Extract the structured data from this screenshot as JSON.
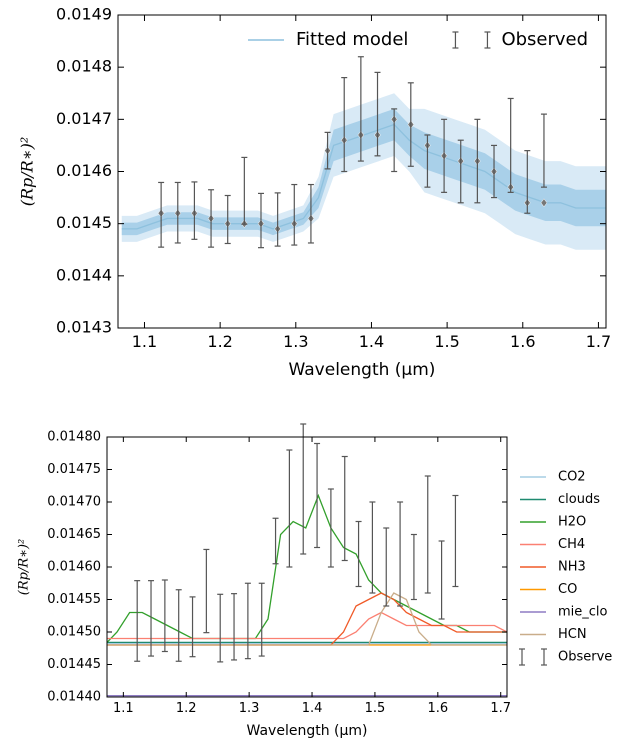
{
  "chart_data": [
    {
      "type": "line",
      "xlabel": "Wavelength (μm)",
      "ylabel": "(Rp/R∗)²",
      "xlim": [
        1.065,
        1.71
      ],
      "xticks": [
        1.1,
        1.2,
        1.3,
        1.4,
        1.5,
        1.6,
        1.7
      ],
      "ylim": [
        0.0143,
        0.0149
      ],
      "yticks": [
        0.0143,
        0.0144,
        0.0145,
        0.0146,
        0.0147,
        0.0148,
        0.0149
      ],
      "legend": "upper right",
      "series": [
        {
          "name": "Fitted model",
          "color": "#8ec1de",
          "band_colors": [
            "#a9d0e9",
            "#d9eaf6"
          ],
          "x": [
            1.07,
            1.09,
            1.11,
            1.13,
            1.15,
            1.17,
            1.19,
            1.21,
            1.23,
            1.25,
            1.27,
            1.29,
            1.31,
            1.33,
            1.35,
            1.37,
            1.39,
            1.41,
            1.43,
            1.45,
            1.47,
            1.49,
            1.51,
            1.53,
            1.55,
            1.57,
            1.59,
            1.61,
            1.63,
            1.65,
            1.67,
            1.69,
            1.71
          ],
          "values": [
            0.01449,
            0.01449,
            0.0145,
            0.01451,
            0.01451,
            0.01451,
            0.0145,
            0.0145,
            0.0145,
            0.0145,
            0.01449,
            0.0145,
            0.01451,
            0.01455,
            0.01465,
            0.01466,
            0.01467,
            0.01468,
            0.01469,
            0.01466,
            0.01464,
            0.01463,
            0.01462,
            0.01461,
            0.0146,
            0.01458,
            0.01456,
            0.01455,
            0.01454,
            0.01454,
            0.01453,
            0.01453,
            0.01453
          ],
          "band1": [
            1.2e-05,
            1.2e-05,
            1.2e-05,
            1.2e-05,
            1.2e-05,
            1.2e-05,
            1.2e-05,
            1.2e-05,
            1.2e-05,
            1.2e-05,
            1.2e-05,
            1.2e-05,
            1.2e-05,
            2e-05,
            3e-05,
            3e-05,
            3e-05,
            3e-05,
            3e-05,
            3e-05,
            3.5e-05,
            3.5e-05,
            3.5e-05,
            3.5e-05,
            3.5e-05,
            3.5e-05,
            3.5e-05,
            3.5e-05,
            3.5e-05,
            3.5e-05,
            3.5e-05,
            3.5e-05,
            3.5e-05
          ],
          "band2": [
            2.5e-05,
            2.5e-05,
            2.5e-05,
            2.5e-05,
            2.5e-05,
            2.5e-05,
            2.5e-05,
            2.5e-05,
            2.5e-05,
            2.5e-05,
            2.5e-05,
            2.5e-05,
            2.5e-05,
            4e-05,
            6e-05,
            6e-05,
            6e-05,
            6e-05,
            6e-05,
            6e-05,
            8e-05,
            8e-05,
            8e-05,
            8e-05,
            8e-05,
            8e-05,
            8e-05,
            8e-05,
            8e-05,
            8e-05,
            8e-05,
            8e-05,
            8e-05
          ],
          "binned_color": "#777777",
          "binned_x": [
            1.122,
            1.144,
            1.166,
            1.188,
            1.21,
            1.232,
            1.254,
            1.276,
            1.298,
            1.32,
            1.342,
            1.364,
            1.386,
            1.408,
            1.43,
            1.452,
            1.474,
            1.496,
            1.518,
            1.54,
            1.562,
            1.584,
            1.606,
            1.628
          ],
          "binned_values": [
            0.01452,
            0.01452,
            0.01452,
            0.01451,
            0.0145,
            0.0145,
            0.0145,
            0.01449,
            0.0145,
            0.01451,
            0.01464,
            0.01466,
            0.01467,
            0.01467,
            0.0147,
            0.01469,
            0.01465,
            0.01463,
            0.01462,
            0.01462,
            0.0146,
            0.01457,
            0.01454,
            0.01454
          ]
        },
        {
          "name": "Observed",
          "type": "errorbar",
          "color": "#555555",
          "x": [
            1.122,
            1.144,
            1.166,
            1.188,
            1.21,
            1.232,
            1.254,
            1.276,
            1.298,
            1.32,
            1.342,
            1.364,
            1.386,
            1.408,
            1.43,
            1.452,
            1.474,
            1.496,
            1.518,
            1.54,
            1.562,
            1.584,
            1.606,
            1.628
          ],
          "values": [
            0.014517,
            0.014521,
            0.014525,
            0.01451,
            0.014508,
            0.014563,
            0.014506,
            0.014508,
            0.014517,
            0.014519,
            0.01464,
            0.01469,
            0.01472,
            0.01471,
            0.01466,
            0.01469,
            0.01462,
            0.01463,
            0.0146,
            0.01462,
            0.0146,
            0.01465,
            0.01458,
            0.01464
          ],
          "errors": [
            6.2e-05,
            5.8e-05,
            5.5e-05,
            5.5e-05,
            4.6e-05,
            6.4e-05,
            5.2e-05,
            5.1e-05,
            5.8e-05,
            5.6e-05,
            3.5e-05,
            9e-05,
            0.0001,
            8e-05,
            6e-05,
            8e-05,
            5e-05,
            7e-05,
            6e-05,
            8e-05,
            5e-05,
            9e-05,
            6e-05,
            7e-05
          ]
        }
      ]
    },
    {
      "type": "line",
      "xlabel": "Wavelength (μm)",
      "ylabel": "(Rp/R∗)²",
      "xlim": [
        1.074,
        1.71
      ],
      "xticks": [
        1.1,
        1.2,
        1.3,
        1.4,
        1.5,
        1.6,
        1.7
      ],
      "ylim": [
        0.0144,
        0.0148
      ],
      "yticks": [
        {
          "value": 0.0144,
          "label": "0.01440"
        },
        {
          "value": 0.01445,
          "label": "0.01445"
        },
        {
          "value": 0.0145,
          "label": "0.01450"
        },
        {
          "value": 0.01455,
          "label": "0.01455"
        },
        {
          "value": 0.0146,
          "label": "0.01460"
        },
        {
          "value": 0.01465,
          "label": "0.01465"
        },
        {
          "value": 0.0147,
          "label": "0.01470"
        },
        {
          "value": 0.01475,
          "label": "0.01475"
        },
        {
          "value": 0.0148,
          "label": "0.01480"
        }
      ],
      "legend": "outside right",
      "x": [
        1.07,
        1.09,
        1.11,
        1.13,
        1.15,
        1.17,
        1.19,
        1.21,
        1.23,
        1.25,
        1.27,
        1.29,
        1.31,
        1.33,
        1.35,
        1.37,
        1.39,
        1.41,
        1.43,
        1.45,
        1.47,
        1.49,
        1.51,
        1.53,
        1.55,
        1.57,
        1.59,
        1.61,
        1.63,
        1.65,
        1.67,
        1.69,
        1.71
      ],
      "series": [
        {
          "name": "CO2",
          "color": "#a6cee3",
          "values": [
            0.014482,
            0.014482,
            0.014482,
            0.014482,
            0.014482,
            0.014482,
            0.014482,
            0.014482,
            0.014482,
            0.014482,
            0.014482,
            0.014482,
            0.014482,
            0.014482,
            0.014482,
            0.014482,
            0.014482,
            0.014482,
            0.014482,
            0.014482,
            0.014482,
            0.014482,
            0.014482,
            0.014482,
            0.014482,
            0.014482,
            0.014482,
            0.014482,
            0.014482,
            0.014482,
            0.014482,
            0.014482,
            0.014482
          ]
        },
        {
          "name": "clouds",
          "color": "#1f8a70",
          "values": [
            0.014484,
            0.014484,
            0.014484,
            0.014484,
            0.014484,
            0.014484,
            0.014484,
            0.014484,
            0.014484,
            0.014484,
            0.014484,
            0.014484,
            0.014484,
            0.014484,
            0.014484,
            0.014484,
            0.014484,
            0.014484,
            0.014484,
            0.014484,
            0.014484,
            0.014484,
            0.014484,
            0.014484,
            0.014484,
            0.014484,
            0.014484,
            0.014484,
            0.014484,
            0.014484,
            0.014484,
            0.014484,
            0.014484
          ]
        },
        {
          "name": "H2O",
          "color": "#33a02c",
          "values": [
            0.01448,
            0.0145,
            0.01453,
            0.01453,
            0.01452,
            0.01451,
            0.0145,
            0.01449,
            0.01449,
            0.01449,
            0.01449,
            0.01449,
            0.01449,
            0.01452,
            0.01465,
            0.01467,
            0.01466,
            0.01471,
            0.01466,
            0.01463,
            0.01462,
            0.01458,
            0.01456,
            0.01455,
            0.01454,
            0.01453,
            0.01452,
            0.01451,
            0.01451,
            0.0145,
            0.0145,
            0.0145,
            0.0145
          ]
        },
        {
          "name": "CH4",
          "color": "#fb8072",
          "values": [
            0.01449,
            0.01449,
            0.01449,
            0.01449,
            0.01449,
            0.01449,
            0.01449,
            0.01449,
            0.01449,
            0.01449,
            0.01449,
            0.01449,
            0.01449,
            0.01449,
            0.01449,
            0.01449,
            0.01449,
            0.01449,
            0.01449,
            0.01449,
            0.0145,
            0.01452,
            0.01453,
            0.01452,
            0.01451,
            0.01451,
            0.01451,
            0.01451,
            0.01451,
            0.01451,
            0.01451,
            0.01451,
            0.0145
          ]
        },
        {
          "name": "NH3",
          "color": "#f05a28",
          "values": [
            0.01448,
            0.01448,
            0.01448,
            0.01448,
            0.01448,
            0.01448,
            0.01448,
            0.01448,
            0.01448,
            0.01448,
            0.01448,
            0.01448,
            0.01448,
            0.01448,
            0.01448,
            0.01448,
            0.01448,
            0.01448,
            0.01448,
            0.0145,
            0.01454,
            0.01455,
            0.01456,
            0.01455,
            0.01453,
            0.01452,
            0.01451,
            0.01451,
            0.0145,
            0.0145,
            0.0145,
            0.0145,
            0.0145
          ]
        },
        {
          "name": "CO",
          "color": "#ff9900",
          "values": [
            0.01448,
            0.01448,
            0.01448,
            0.01448,
            0.01448,
            0.01448,
            0.01448,
            0.01448,
            0.01448,
            0.01448,
            0.01448,
            0.01448,
            0.01448,
            0.01448,
            0.01448,
            0.01448,
            0.01448,
            0.01448,
            0.01448,
            0.01448,
            0.01448,
            0.01448,
            0.01448,
            0.01448,
            0.01448,
            0.01448,
            0.01448,
            0.01448,
            0.01448,
            0.01448,
            0.01448,
            0.01448,
            0.01448
          ]
        },
        {
          "name": "mie_clo",
          "color": "#8e7cc3",
          "values": [
            0.014402,
            0.014402,
            0.014402,
            0.014402,
            0.014402,
            0.014402,
            0.014402,
            0.014402,
            0.014402,
            0.014402,
            0.014402,
            0.014402,
            0.014402,
            0.014402,
            0.014402,
            0.014402,
            0.014402,
            0.014402,
            0.014402,
            0.014402,
            0.014402,
            0.014402,
            0.014402,
            0.014402,
            0.014402,
            0.014402,
            0.014402,
            0.014402,
            0.014402,
            0.014402,
            0.014402,
            0.014402,
            0.014402
          ]
        },
        {
          "name": "HCN",
          "color": "#c9ad8a",
          "values": [
            0.01448,
            0.01448,
            0.01448,
            0.01448,
            0.01448,
            0.01448,
            0.01448,
            0.01448,
            0.01448,
            0.01448,
            0.01448,
            0.01448,
            0.01448,
            0.01448,
            0.01448,
            0.01448,
            0.01448,
            0.01448,
            0.01448,
            0.01448,
            0.01448,
            0.01448,
            0.01453,
            0.01456,
            0.01455,
            0.0145,
            0.01448,
            0.01448,
            0.01448,
            0.01448,
            0.01448,
            0.01448,
            0.01448
          ]
        },
        {
          "name": "Observe",
          "type": "errorbar",
          "color": "#555555",
          "x": [
            1.122,
            1.144,
            1.166,
            1.188,
            1.21,
            1.232,
            1.254,
            1.276,
            1.298,
            1.32,
            1.342,
            1.364,
            1.386,
            1.408,
            1.43,
            1.452,
            1.474,
            1.496,
            1.518,
            1.54,
            1.562,
            1.584,
            1.606,
            1.628
          ],
          "values": [
            0.014517,
            0.014521,
            0.014525,
            0.01451,
            0.014508,
            0.014563,
            0.014506,
            0.014508,
            0.014517,
            0.014519,
            0.01464,
            0.01469,
            0.01472,
            0.01471,
            0.01466,
            0.01469,
            0.01462,
            0.01463,
            0.0146,
            0.01462,
            0.0146,
            0.01465,
            0.01458,
            0.01464
          ],
          "errors": [
            6.2e-05,
            5.8e-05,
            5.5e-05,
            5.5e-05,
            4.6e-05,
            6.4e-05,
            5.2e-05,
            5.1e-05,
            5.8e-05,
            5.6e-05,
            3.5e-05,
            9e-05,
            0.0001,
            8e-05,
            6e-05,
            8e-05,
            5e-05,
            7e-05,
            6e-05,
            8e-05,
            5e-05,
            9e-05,
            6e-05,
            7e-05
          ]
        }
      ]
    }
  ]
}
